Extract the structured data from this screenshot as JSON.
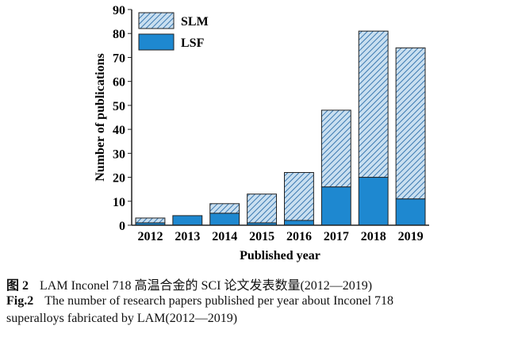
{
  "chart_data": {
    "type": "bar",
    "stacked": true,
    "categories": [
      "2012",
      "2013",
      "2014",
      "2015",
      "2016",
      "2017",
      "2018",
      "2019"
    ],
    "series": [
      {
        "name": "LSF",
        "values": [
          1,
          4,
          5,
          1,
          2,
          16,
          20,
          11
        ],
        "color": "#1e88d0",
        "pattern": "solid"
      },
      {
        "name": "SLM",
        "values": [
          2,
          0,
          4,
          12,
          20,
          32,
          61,
          63
        ],
        "color": "#9cc4e4",
        "pattern": "hatched"
      }
    ],
    "xlabel": "Published year",
    "ylabel": "Number of publications",
    "ylim": [
      0,
      90
    ],
    "yticks": [
      0,
      10,
      20,
      30,
      40,
      50,
      60,
      70,
      80,
      90
    ],
    "grid": false,
    "legend": "top-left"
  },
  "caption": {
    "cn_label": "图 2",
    "cn_text": "LAM Inconel 718 高温合金的 SCI 论文发表数量(2012—2019)",
    "en_label": "Fig.2",
    "en_text1": "The number of research papers published per year about Inconel 718",
    "en_text2": "superalloys fabricated by LAM(2012—2019)"
  }
}
